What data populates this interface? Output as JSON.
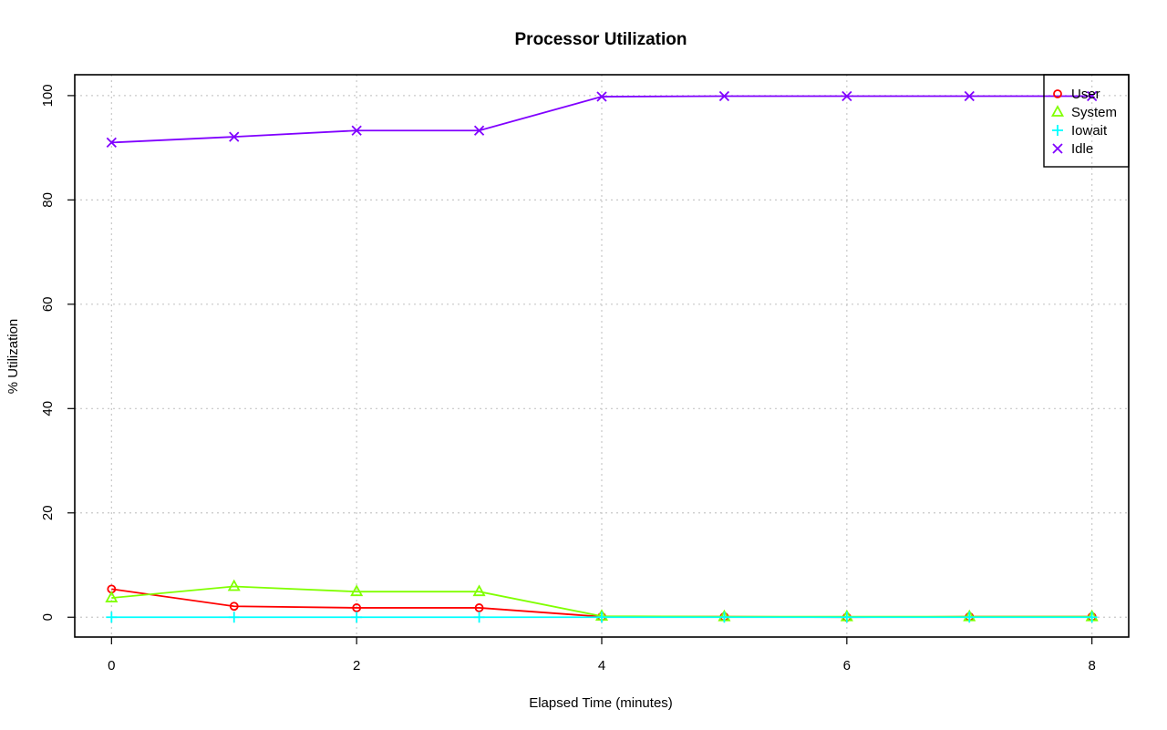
{
  "chart_data": {
    "type": "line",
    "title": "Processor Utilization",
    "xlabel": "Elapsed Time (minutes)",
    "ylabel": "% Utilization",
    "xlim": [
      -0.3,
      8.3
    ],
    "ylim": [
      -3.8,
      104
    ],
    "xticks": [
      0,
      2,
      4,
      6,
      8
    ],
    "yticks": [
      0,
      20,
      40,
      60,
      80,
      100
    ],
    "grid": true,
    "legend_position": "top-right",
    "x": [
      0,
      1,
      2,
      3,
      4,
      5,
      6,
      7,
      8
    ],
    "series": [
      {
        "name": "User",
        "color": "#ff0000",
        "marker": "circle",
        "values": [
          5.4,
          2.1,
          1.8,
          1.8,
          0.1,
          0.1,
          0.0,
          0.1,
          0.1
        ]
      },
      {
        "name": "System",
        "color": "#80ff00",
        "marker": "triangle",
        "values": [
          3.7,
          5.9,
          4.9,
          4.9,
          0.2,
          0.1,
          0.1,
          0.1,
          0.1
        ]
      },
      {
        "name": "Iowait",
        "color": "#00ffff",
        "marker": "plus",
        "values": [
          0.0,
          0.0,
          0.0,
          0.0,
          0.0,
          0.0,
          0.0,
          0.0,
          0.0
        ]
      },
      {
        "name": "Idle",
        "color": "#8000ff",
        "marker": "cross",
        "values": [
          91.0,
          92.1,
          93.3,
          93.3,
          99.8,
          99.9,
          99.9,
          99.9,
          99.9
        ]
      }
    ]
  }
}
